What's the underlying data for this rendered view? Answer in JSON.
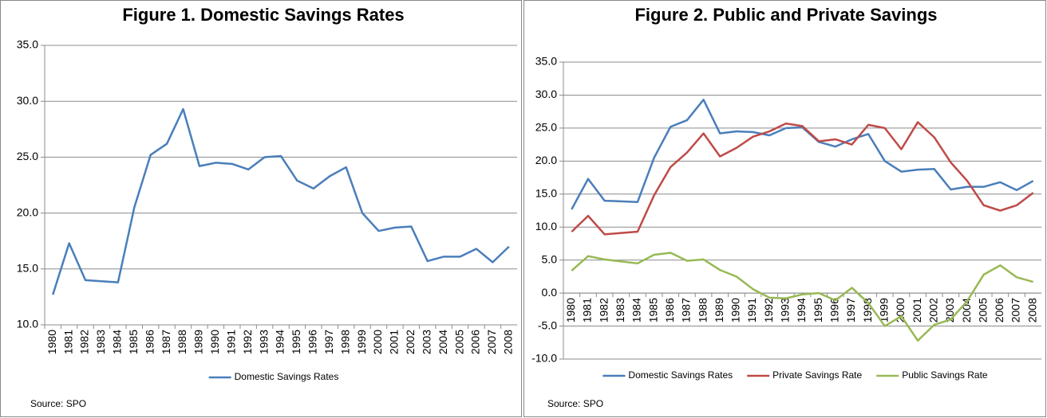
{
  "chart_data": [
    {
      "type": "line",
      "title": "Figure 1. Domestic Savings Rates",
      "note": "Source: SPO",
      "categories": [
        "1980",
        "1981",
        "1982",
        "1983",
        "1984",
        "1985",
        "1986",
        "1987",
        "1988",
        "1989",
        "1990",
        "1991",
        "1992",
        "1993",
        "1994",
        "1995",
        "1996",
        "1997",
        "1998",
        "1999",
        "2000",
        "2001",
        "2002",
        "2003",
        "2004",
        "2005",
        "2006",
        "2007",
        "2008"
      ],
      "series": [
        {
          "name": "Domestic Savings Rates",
          "color": "#4a7ebb",
          "values": [
            12.7,
            17.3,
            14.0,
            13.9,
            13.8,
            20.5,
            25.2,
            26.2,
            29.3,
            24.2,
            24.5,
            24.4,
            23.9,
            25.0,
            25.1,
            22.9,
            22.2,
            23.3,
            24.1,
            20.0,
            18.4,
            18.7,
            18.8,
            15.7,
            16.1,
            16.1,
            16.8,
            15.6,
            17.0
          ]
        }
      ],
      "ylim": [
        10,
        35
      ],
      "yticks": [
        {
          "value": 10,
          "label": "10.0"
        },
        {
          "value": 15,
          "label": "15.0"
        },
        {
          "value": 20,
          "label": "20.0"
        },
        {
          "value": 25,
          "label": "25.0"
        },
        {
          "value": 30,
          "label": "30.0"
        },
        {
          "value": 35,
          "label": "35.0"
        }
      ],
      "grid": true,
      "legend": "bottom"
    },
    {
      "type": "line",
      "title": "Figure 2. Public and Private Savings",
      "note": "Source: SPO",
      "categories": [
        "1980",
        "1981",
        "1982",
        "1983",
        "1984",
        "1985",
        "1986",
        "1987",
        "1988",
        "1989",
        "1990",
        "1991",
        "1992",
        "1993",
        "1994",
        "1995",
        "1996",
        "1997",
        "1998",
        "1999",
        "2000",
        "2001",
        "2002",
        "2003",
        "2004",
        "2005",
        "2006",
        "2007",
        "2008"
      ],
      "series": [
        {
          "name": "Domestic Savings Rates",
          "color": "#4a7ebb",
          "values": [
            12.7,
            17.3,
            14.0,
            13.9,
            13.8,
            20.5,
            25.2,
            26.2,
            29.3,
            24.2,
            24.5,
            24.4,
            23.9,
            25.0,
            25.1,
            22.9,
            22.2,
            23.3,
            24.1,
            20.0,
            18.4,
            18.7,
            18.8,
            15.7,
            16.1,
            16.1,
            16.8,
            15.6,
            17.0
          ]
        },
        {
          "name": "Private Savings Rate",
          "color": "#be4b48",
          "values": [
            9.3,
            11.7,
            8.9,
            9.1,
            9.3,
            14.8,
            19.1,
            21.3,
            24.2,
            20.7,
            22.0,
            23.7,
            24.5,
            25.7,
            25.3,
            23.0,
            23.3,
            22.5,
            25.5,
            25.0,
            21.8,
            25.9,
            23.6,
            19.8,
            17.0,
            13.3,
            12.5,
            13.3,
            15.2
          ]
        },
        {
          "name": "Public Savings Rate",
          "color": "#98b954",
          "values": [
            3.4,
            5.6,
            5.1,
            4.8,
            4.5,
            5.8,
            6.1,
            4.9,
            5.1,
            3.5,
            2.5,
            0.6,
            -0.7,
            -0.8,
            -0.2,
            0.0,
            -1.1,
            0.8,
            -1.5,
            -5.0,
            -3.5,
            -7.2,
            -4.8,
            -4.0,
            -1.2,
            2.8,
            4.2,
            2.4,
            1.7
          ]
        }
      ],
      "ylim": [
        -10,
        35
      ],
      "yticks": [
        {
          "value": -10,
          "label": "-10.0"
        },
        {
          "value": -5,
          "label": "-5.0"
        },
        {
          "value": 0,
          "label": "0.0"
        },
        {
          "value": 5,
          "label": "5.0"
        },
        {
          "value": 10,
          "label": "10.0"
        },
        {
          "value": 15,
          "label": "15.0"
        },
        {
          "value": 20,
          "label": "20.0"
        },
        {
          "value": 25,
          "label": "25.0"
        },
        {
          "value": 30,
          "label": "30.0"
        },
        {
          "value": 35,
          "label": "35.0"
        }
      ],
      "grid": true,
      "legend": "bottom"
    }
  ]
}
